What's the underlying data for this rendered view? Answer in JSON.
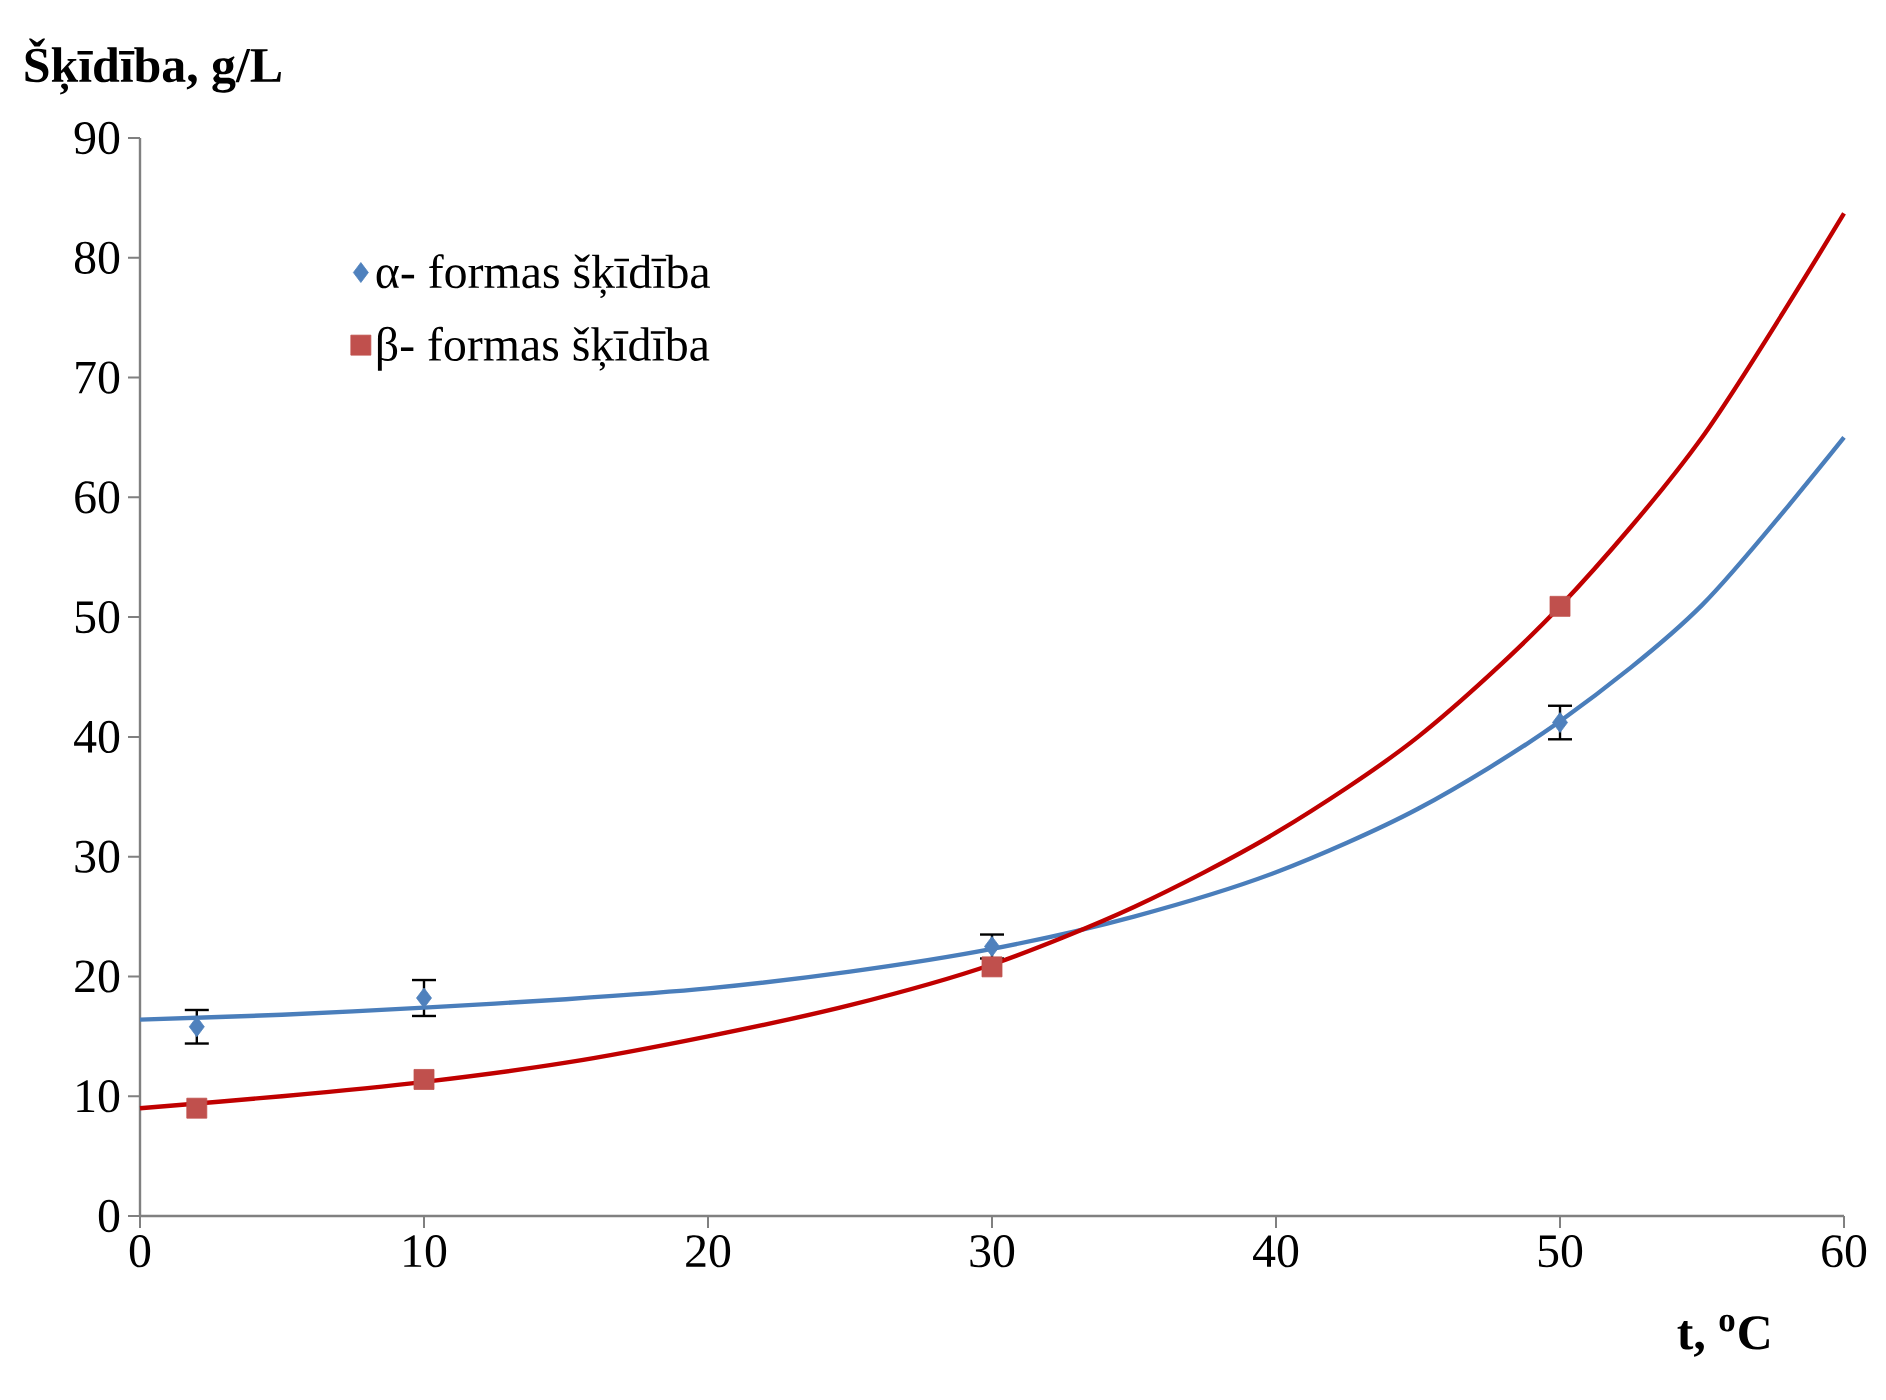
{
  "chart_data": {
    "type": "scatter",
    "xlabel": "t, $^{o}$C",
    "ylabel": "Šķīdība, g/L",
    "xlim": [
      0,
      60
    ],
    "xticks": [
      0,
      10,
      20,
      30,
      40,
      50,
      60
    ],
    "ylim": [
      0,
      90
    ],
    "yticks": [
      0,
      10,
      20,
      30,
      40,
      50,
      60,
      70,
      80,
      90
    ],
    "grid": false,
    "legend": "top left",
    "series": [
      {
        "name": "α- formas šķīdība",
        "type": "scatter",
        "marker": "diamond",
        "color": "#4f81bd",
        "x": [
          2,
          10,
          30,
          50
        ],
        "values": [
          15.8,
          18.2,
          22.5,
          41.2
        ],
        "errors": [
          1.4,
          1.5,
          1.0,
          1.4
        ]
      },
      {
        "name": "β- formas šķīdība",
        "type": "scatter",
        "marker": "square",
        "color": "#c0504d",
        "x": [
          2,
          10,
          30,
          50
        ],
        "values": [
          9.0,
          11.4,
          20.8,
          50.9
        ]
      },
      {
        "type": "line",
        "color": "#4a7ebb",
        "marker": "none",
        "x": [
          0,
          5,
          10,
          15,
          20,
          25,
          30,
          35,
          40,
          45,
          50,
          55,
          60
        ],
        "values": [
          16.4,
          16.8,
          17.4,
          18.1,
          19.0,
          20.4,
          22.3,
          25.0,
          28.7,
          34.0,
          41.3,
          51.0,
          65.0
        ]
      },
      {
        "type": "line",
        "color": "#c00000",
        "marker": "none",
        "x": [
          0,
          5,
          10,
          15,
          20,
          25,
          30,
          35,
          40,
          45,
          50,
          55,
          60
        ],
        "values": [
          9.0,
          10.0,
          11.2,
          12.8,
          15.0,
          17.6,
          21.0,
          25.8,
          32.0,
          40.0,
          50.9,
          65.0,
          83.7
        ]
      }
    ]
  }
}
